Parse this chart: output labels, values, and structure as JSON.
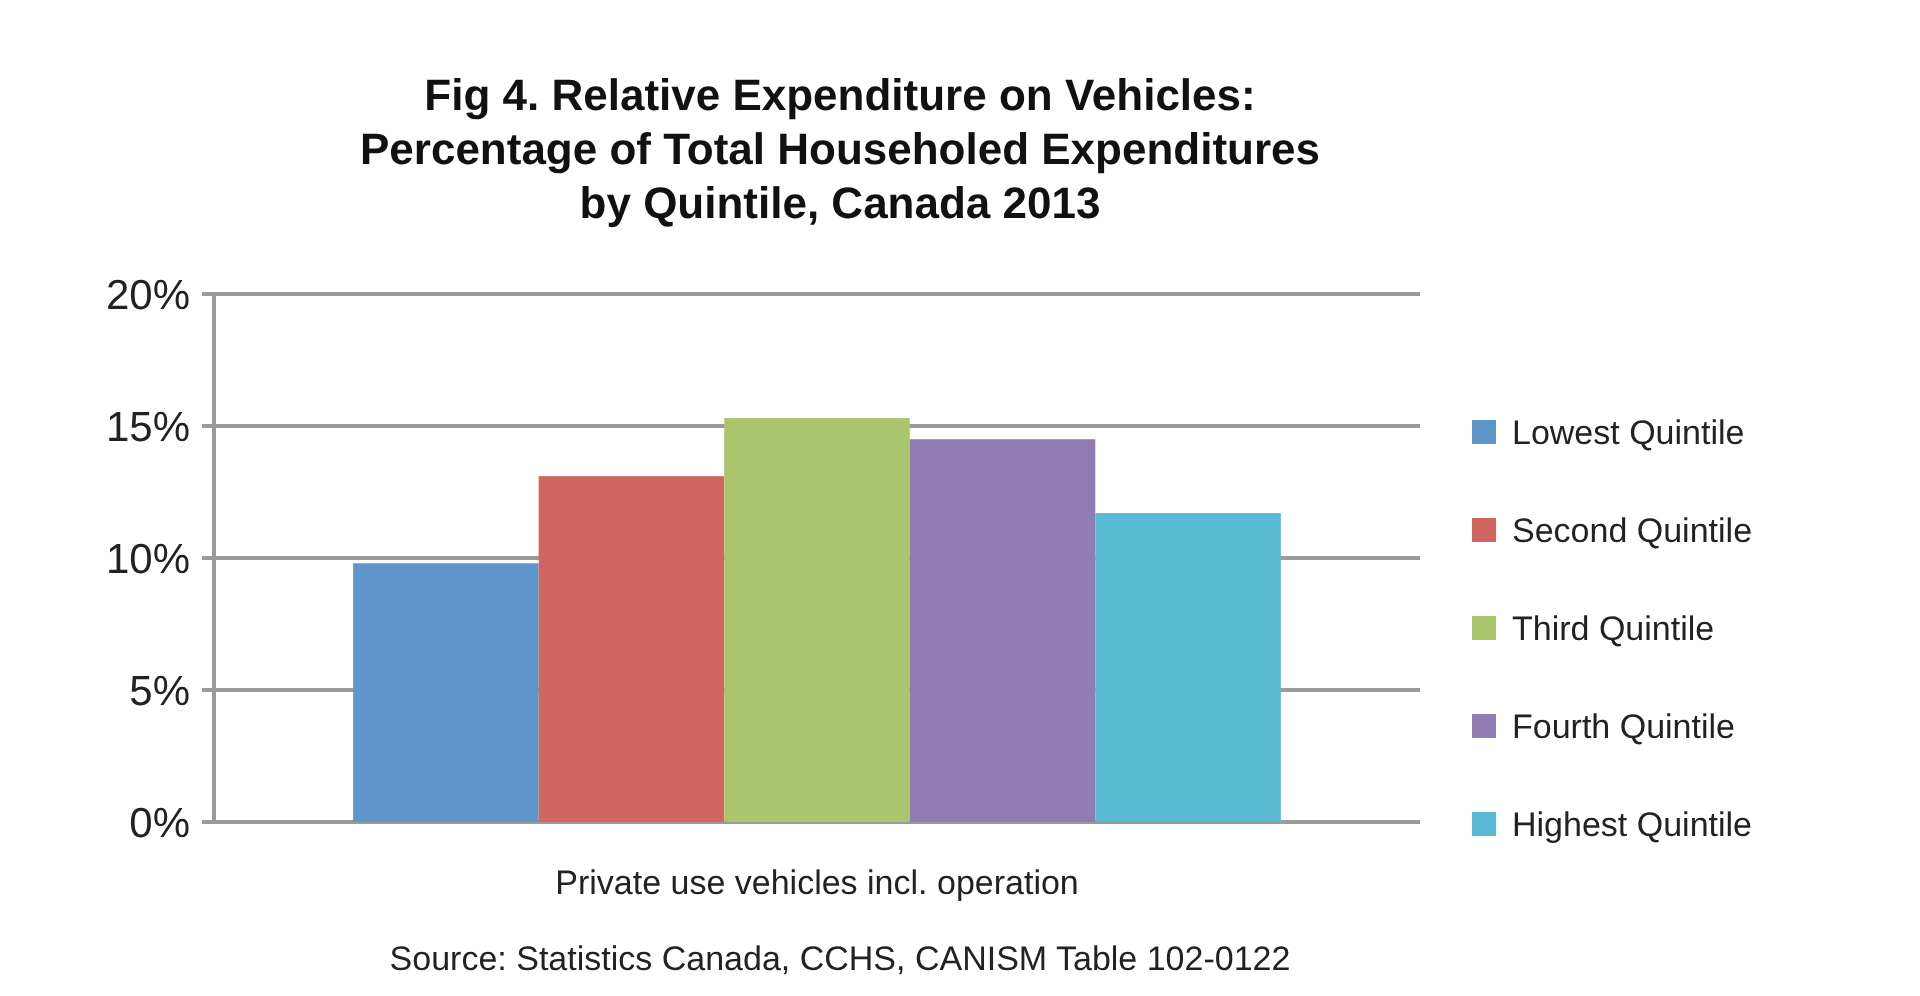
{
  "chart_data": {
    "type": "bar",
    "title": "Fig 4. Relative Expenditure on Vehicles:\nPercentage of Total Householed Expenditures\nby Quintile, Canada 2013",
    "categories": [
      "Private use vehicles incl. operation"
    ],
    "series": [
      {
        "name": "Lowest Quintile",
        "color": "#6095cb",
        "values": [
          9.8
        ]
      },
      {
        "name": "Second Quintile",
        "color": "#cf6760",
        "values": [
          13.1
        ]
      },
      {
        "name": "Third Quintile",
        "color": "#abc56d",
        "values": [
          15.3
        ]
      },
      {
        "name": "Fourth Quintile",
        "color": "#917bb3",
        "values": [
          14.5
        ]
      },
      {
        "name": "Highest Quintile",
        "color": "#59bad3",
        "values": [
          11.7
        ]
      }
    ],
    "ylim": [
      0,
      20
    ],
    "yticks": [
      {
        "value": 0,
        "label": "0%"
      },
      {
        "value": 5,
        "label": "5%"
      },
      {
        "value": 10,
        "label": "10%"
      },
      {
        "value": 15,
        "label": "15%"
      },
      {
        "value": 20,
        "label": "20%"
      }
    ],
    "grid": "y",
    "legend": "right",
    "annotations": [
      "Source: Statistics Canada, CCHS, CANISM Table 102-0122"
    ]
  }
}
